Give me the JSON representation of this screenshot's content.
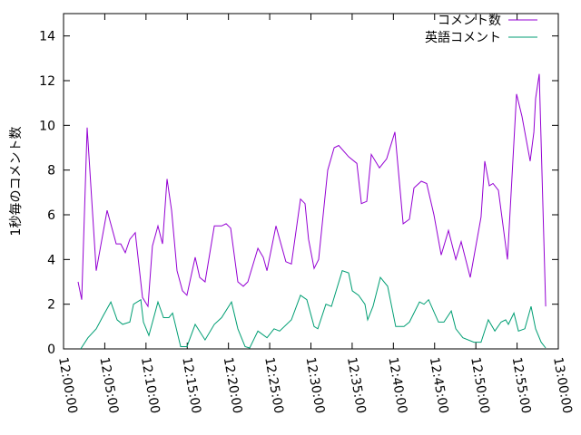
{
  "chart_data": {
    "type": "line",
    "ylabel": "1秒毎のコメント数",
    "legend": "top-right",
    "xlim": [
      "12:00:00",
      "13:00:00"
    ],
    "xticks": [
      "12:00:00",
      "12:05:00",
      "12:10:00",
      "12:15:00",
      "12:20:00",
      "12:25:00",
      "12:30:00",
      "12:35:00",
      "12:40:00",
      "12:45:00",
      "12:50:00",
      "12:55:00",
      "13:00:00"
    ],
    "ylim": [
      0,
      15
    ],
    "yticks": [
      0,
      2,
      4,
      6,
      8,
      10,
      12,
      14
    ],
    "series": [
      {
        "name": "コメント数",
        "color": "#9400d3",
        "x": [
          "12:01:46",
          "12:02:12",
          "12:02:52",
          "12:03:58",
          "12:05:17",
          "12:06:23",
          "12:06:56",
          "12:07:29",
          "12:08:02",
          "12:08:42",
          "12:09:35",
          "12:10:14",
          "12:10:47",
          "12:11:27",
          "12:12:00",
          "12:12:33",
          "12:13:06",
          "12:13:46",
          "12:14:25",
          "12:14:58",
          "12:15:58",
          "12:16:31",
          "12:17:10",
          "12:18:17",
          "12:19:10",
          "12:19:43",
          "12:20:16",
          "12:21:08",
          "12:21:48",
          "12:22:21",
          "12:23:34",
          "12:24:13",
          "12:24:40",
          "12:25:46",
          "12:26:58",
          "12:27:38",
          "12:28:44",
          "12:29:17",
          "12:29:43",
          "12:30:23",
          "12:30:56",
          "12:32:02",
          "12:32:49",
          "12:33:22",
          "12:34:34",
          "12:35:34",
          "12:36:07",
          "12:36:46",
          "12:37:19",
          "12:38:19",
          "12:39:11",
          "12:40:11",
          "12:41:11",
          "12:41:57",
          "12:42:30",
          "12:43:23",
          "12:44:02",
          "12:44:55",
          "12:45:48",
          "12:46:41",
          "12:47:34",
          "12:48:13",
          "12:49:19",
          "12:50:38",
          "12:51:05",
          "12:51:38",
          "12:52:05",
          "12:52:44",
          "12:53:50",
          "12:54:56",
          "12:55:36",
          "12:56:35",
          "12:57:02",
          "12:57:15",
          "12:57:41",
          "12:58:28"
        ],
        "values": [
          3.0,
          2.2,
          9.9,
          3.5,
          6.2,
          4.7,
          4.7,
          4.3,
          4.9,
          5.2,
          2.3,
          1.9,
          4.6,
          5.5,
          4.7,
          7.6,
          6.2,
          3.5,
          2.6,
          2.4,
          4.1,
          3.2,
          3.0,
          5.5,
          5.5,
          5.6,
          5.4,
          3.0,
          2.8,
          3.0,
          4.5,
          4.1,
          3.5,
          5.5,
          3.9,
          3.8,
          6.7,
          6.5,
          4.9,
          3.6,
          4.0,
          8.0,
          9.0,
          9.1,
          8.6,
          8.3,
          6.5,
          6.6,
          8.7,
          8.1,
          8.5,
          9.7,
          5.6,
          5.8,
          7.2,
          7.5,
          7.4,
          6.0,
          4.2,
          5.3,
          4.0,
          4.8,
          3.2,
          5.9,
          8.4,
          7.3,
          7.4,
          7.1,
          4.0,
          11.4,
          10.4,
          8.4,
          9.7,
          11.2,
          12.3,
          1.9
        ]
      },
      {
        "name": "英語コメント",
        "color": "#009e73",
        "x": [
          "12:02:05",
          "12:02:58",
          "12:03:58",
          "12:04:50",
          "12:05:44",
          "12:06:30",
          "12:07:10",
          "12:08:02",
          "12:08:29",
          "12:09:22",
          "12:09:41",
          "12:10:21",
          "12:11:27",
          "12:12:07",
          "12:12:46",
          "12:13:13",
          "12:14:12",
          "12:14:58",
          "12:15:58",
          "12:17:10",
          "12:18:17",
          "12:19:10",
          "12:20:22",
          "12:21:08",
          "12:22:01",
          "12:22:34",
          "12:23:34",
          "12:24:40",
          "12:25:32",
          "12:26:12",
          "12:27:38",
          "12:28:44",
          "12:29:30",
          "12:30:23",
          "12:30:50",
          "12:31:49",
          "12:32:29",
          "12:33:48",
          "12:34:34",
          "12:35:01",
          "12:35:47",
          "12:36:33",
          "12:36:53",
          "12:37:32",
          "12:38:25",
          "12:39:18",
          "12:40:17",
          "12:41:17",
          "12:41:57",
          "12:43:10",
          "12:43:43",
          "12:44:16",
          "12:45:28",
          "12:46:08",
          "12:47:01",
          "12:47:34",
          "12:48:26",
          "12:49:46",
          "12:50:38",
          "12:51:31",
          "12:52:18",
          "12:53:04",
          "12:53:37",
          "12:53:57",
          "12:54:37",
          "12:55:10",
          "12:55:56",
          "12:56:42",
          "12:57:15",
          "12:57:55",
          "12:58:28"
        ],
        "values": [
          0,
          0.5,
          0.9,
          1.5,
          2.1,
          1.3,
          1.1,
          1.2,
          2.0,
          2.2,
          1.2,
          0.6,
          2.1,
          1.4,
          1.4,
          1.6,
          0.1,
          0.1,
          1.1,
          0.4,
          1.1,
          1.4,
          2.1,
          0.9,
          0.1,
          0.04,
          0.8,
          0.5,
          0.9,
          0.8,
          1.3,
          2.4,
          2.2,
          1.0,
          0.9,
          2.0,
          1.9,
          3.5,
          3.4,
          2.6,
          2.4,
          2.0,
          1.3,
          1.9,
          3.2,
          2.8,
          1.0,
          1.0,
          1.2,
          2.1,
          2.0,
          2.2,
          1.2,
          1.2,
          1.7,
          0.9,
          0.5,
          0.3,
          0.3,
          1.3,
          0.8,
          1.2,
          1.3,
          1.1,
          1.6,
          0.8,
          0.9,
          1.9,
          0.9,
          0.3,
          0.04
        ]
      }
    ]
  }
}
